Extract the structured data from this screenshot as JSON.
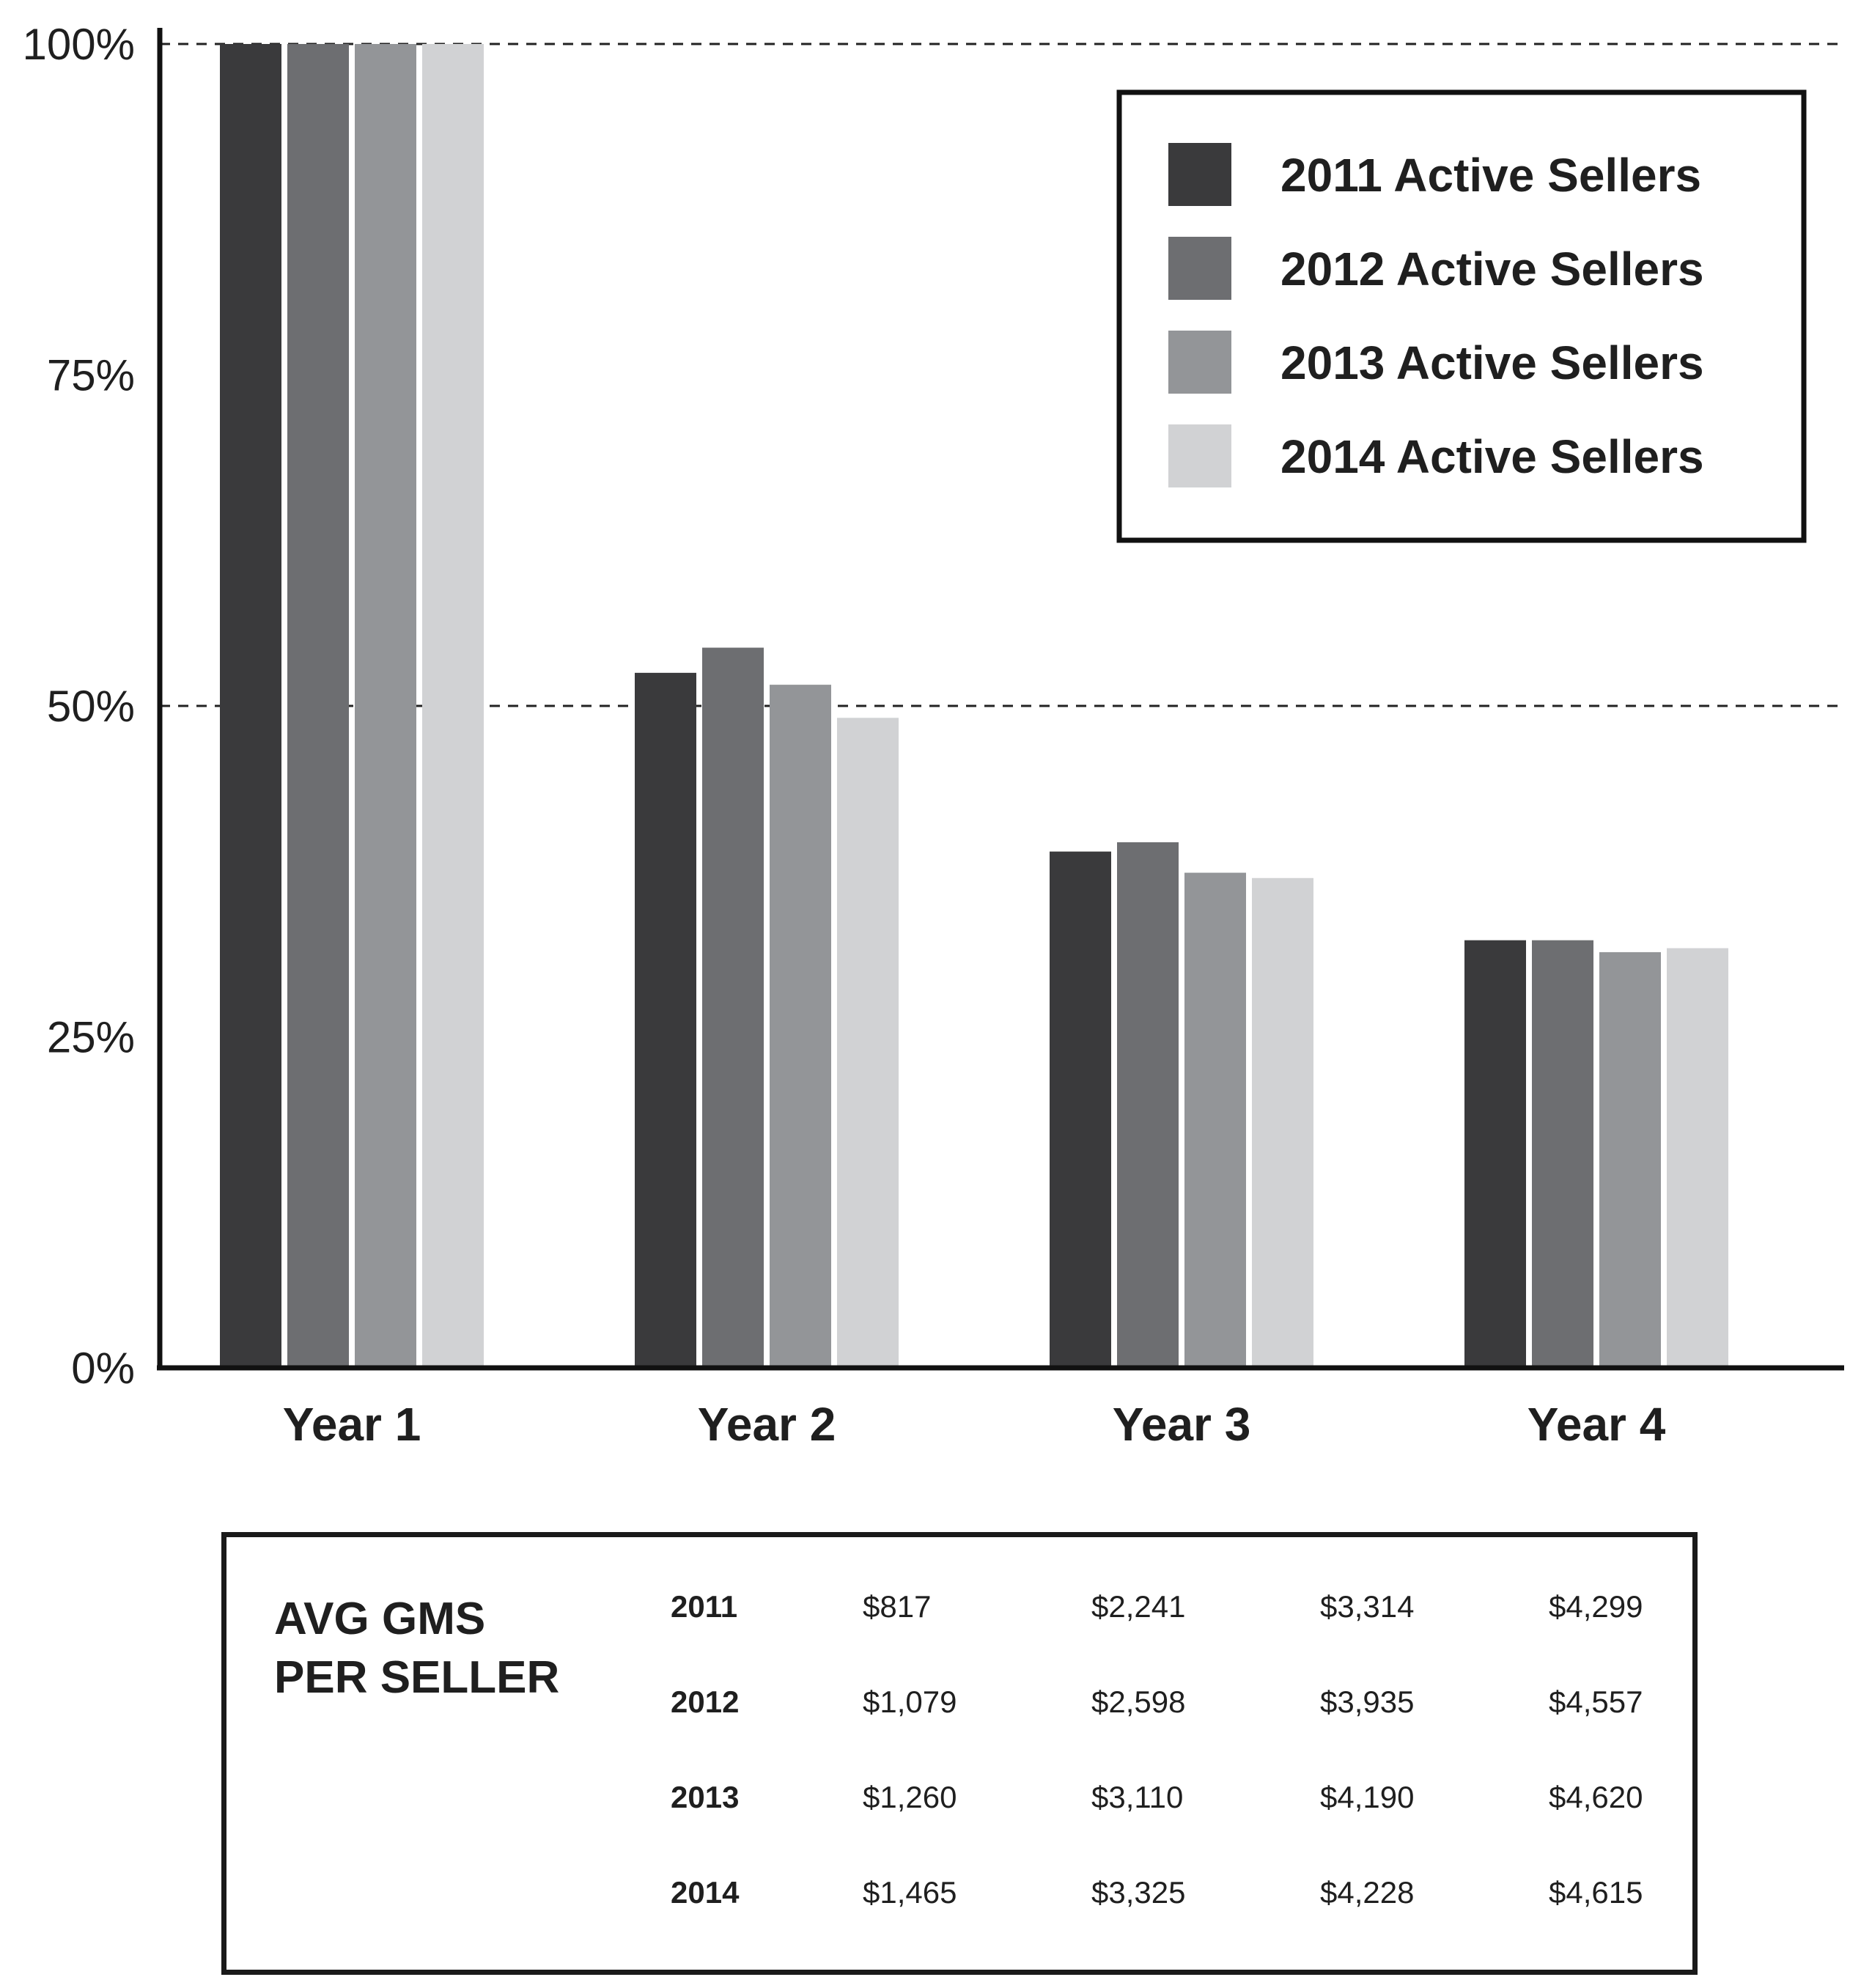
{
  "chart_data": {
    "type": "bar",
    "title": "",
    "xlabel": "",
    "ylabel": "",
    "categories": [
      "Year 1",
      "Year 2",
      "Year 3",
      "Year 4"
    ],
    "series": [
      {
        "name": "2011 Active Sellers",
        "color": "#3a3a3c",
        "values": [
          100,
          52.5,
          39,
          32.3
        ]
      },
      {
        "name": "2012 Active Sellers",
        "color": "#6d6e71",
        "values": [
          100,
          54.4,
          39.7,
          32.3
        ]
      },
      {
        "name": "2013 Active Sellers",
        "color": "#939598",
        "values": [
          100,
          51.6,
          37.4,
          31.4
        ]
      },
      {
        "name": "2014 Active Sellers",
        "color": "#d1d2d4",
        "values": [
          100,
          49.1,
          37,
          31.7
        ]
      }
    ],
    "ylim": [
      0,
      100
    ],
    "yticks": [
      0,
      25,
      50,
      75,
      100
    ],
    "ytick_labels": [
      "0%",
      "25%",
      "50%",
      "75%",
      "100%"
    ],
    "dashed_gridlines": [
      50,
      100
    ],
    "legend_position": "top-right"
  },
  "gms_table": {
    "title_line1": "AVG GMS",
    "title_line2": "PER SELLER",
    "rows": [
      {
        "year": "2011",
        "values": [
          "$817",
          "$2,241",
          "$3,314",
          "$4,299"
        ]
      },
      {
        "year": "2012",
        "values": [
          "$1,079",
          "$2,598",
          "$3,935",
          "$4,557"
        ]
      },
      {
        "year": "2013",
        "values": [
          "$1,260",
          "$3,110",
          "$4,190",
          "$4,620"
        ]
      },
      {
        "year": "2014",
        "values": [
          "$1,465",
          "$3,325",
          "$4,228",
          "$4,615"
        ]
      }
    ]
  }
}
